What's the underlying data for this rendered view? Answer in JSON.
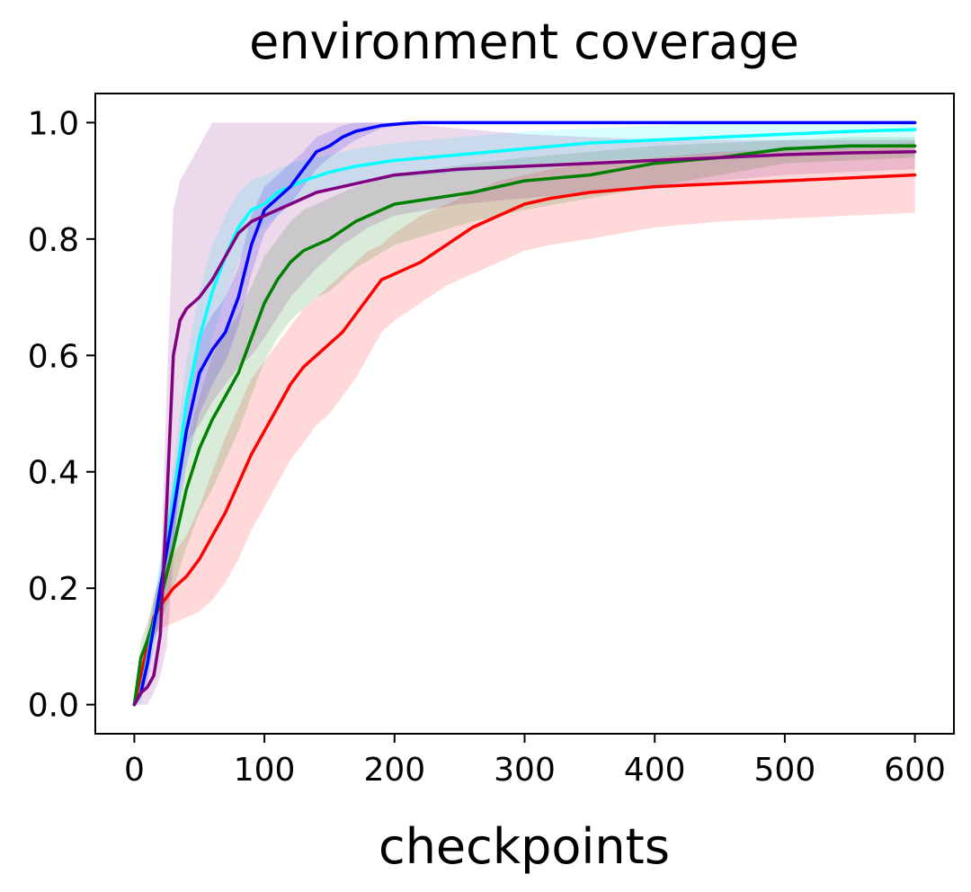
{
  "chart_data": {
    "type": "line",
    "title": "environment coverage",
    "xlabel": "checkpoints",
    "ylabel": "",
    "xlim": [
      -30,
      630
    ],
    "ylim": [
      -0.05,
      1.05
    ],
    "xticks": [
      0,
      100,
      200,
      300,
      400,
      500,
      600
    ],
    "yticks": [
      0.0,
      0.2,
      0.4,
      0.6,
      0.8,
      1.0
    ],
    "xtick_labels": [
      "0",
      "100",
      "200",
      "300",
      "400",
      "500",
      "600"
    ],
    "ytick_labels": [
      "0.0",
      "0.2",
      "0.4",
      "0.6",
      "0.8",
      "1.0"
    ],
    "grid": false,
    "series": [
      {
        "color": "#ff0000",
        "x": [
          0,
          5,
          10,
          15,
          20,
          30,
          40,
          50,
          60,
          70,
          80,
          90,
          100,
          110,
          120,
          130,
          140,
          150,
          160,
          170,
          180,
          190,
          200,
          220,
          240,
          260,
          280,
          300,
          320,
          350,
          400,
          450,
          500,
          550,
          600
        ],
        "y": [
          0.0,
          0.05,
          0.1,
          0.15,
          0.17,
          0.2,
          0.22,
          0.25,
          0.29,
          0.33,
          0.38,
          0.43,
          0.47,
          0.51,
          0.55,
          0.58,
          0.6,
          0.62,
          0.64,
          0.67,
          0.7,
          0.73,
          0.74,
          0.76,
          0.79,
          0.82,
          0.84,
          0.86,
          0.87,
          0.88,
          0.89,
          0.895,
          0.9,
          0.905,
          0.91
        ],
        "band_lower": [
          0.0,
          0.03,
          0.07,
          0.12,
          0.13,
          0.14,
          0.15,
          0.16,
          0.18,
          0.21,
          0.25,
          0.3,
          0.34,
          0.38,
          0.42,
          0.45,
          0.48,
          0.5,
          0.53,
          0.56,
          0.6,
          0.64,
          0.66,
          0.69,
          0.72,
          0.74,
          0.76,
          0.78,
          0.79,
          0.8,
          0.82,
          0.83,
          0.835,
          0.84,
          0.845
        ],
        "band_upper": [
          0.0,
          0.07,
          0.13,
          0.19,
          0.22,
          0.26,
          0.29,
          0.34,
          0.4,
          0.46,
          0.51,
          0.56,
          0.59,
          0.62,
          0.65,
          0.68,
          0.7,
          0.72,
          0.74,
          0.76,
          0.78,
          0.79,
          0.81,
          0.84,
          0.86,
          0.88,
          0.9,
          0.91,
          0.92,
          0.93,
          0.94,
          0.95,
          0.955,
          0.96,
          0.965
        ]
      },
      {
        "color": "#008000",
        "x": [
          0,
          5,
          10,
          20,
          30,
          40,
          50,
          60,
          70,
          80,
          90,
          100,
          110,
          120,
          130,
          140,
          150,
          170,
          200,
          230,
          260,
          300,
          350,
          400,
          450,
          500,
          550,
          600
        ],
        "y": [
          0.0,
          0.08,
          0.11,
          0.18,
          0.27,
          0.37,
          0.44,
          0.49,
          0.53,
          0.57,
          0.63,
          0.69,
          0.73,
          0.76,
          0.78,
          0.79,
          0.8,
          0.83,
          0.86,
          0.87,
          0.88,
          0.9,
          0.91,
          0.93,
          0.94,
          0.955,
          0.96,
          0.96
        ],
        "band_lower": [
          0.0,
          0.05,
          0.08,
          0.14,
          0.2,
          0.27,
          0.33,
          0.37,
          0.42,
          0.47,
          0.53,
          0.59,
          0.63,
          0.66,
          0.68,
          0.7,
          0.71,
          0.75,
          0.79,
          0.81,
          0.83,
          0.85,
          0.87,
          0.89,
          0.91,
          0.93,
          0.935,
          0.94
        ],
        "band_upper": [
          0.0,
          0.11,
          0.14,
          0.22,
          0.33,
          0.45,
          0.53,
          0.6,
          0.64,
          0.67,
          0.72,
          0.77,
          0.8,
          0.83,
          0.85,
          0.86,
          0.87,
          0.89,
          0.91,
          0.92,
          0.93,
          0.94,
          0.95,
          0.96,
          0.965,
          0.97,
          0.975,
          0.975
        ]
      },
      {
        "color": "#00ffff",
        "x": [
          0,
          5,
          10,
          20,
          30,
          40,
          50,
          60,
          70,
          80,
          90,
          100,
          110,
          120,
          130,
          150,
          170,
          200,
          250,
          300,
          350,
          400,
          450,
          500,
          550,
          600
        ],
        "y": [
          0.0,
          0.02,
          0.08,
          0.2,
          0.35,
          0.52,
          0.63,
          0.71,
          0.77,
          0.82,
          0.85,
          0.86,
          0.88,
          0.89,
          0.9,
          0.915,
          0.925,
          0.935,
          0.945,
          0.955,
          0.965,
          0.97,
          0.975,
          0.98,
          0.985,
          0.988
        ],
        "band_lower": [
          0.0,
          0.0,
          0.05,
          0.15,
          0.29,
          0.45,
          0.55,
          0.63,
          0.7,
          0.76,
          0.8,
          0.82,
          0.84,
          0.86,
          0.87,
          0.885,
          0.895,
          0.905,
          0.915,
          0.925,
          0.935,
          0.94,
          0.945,
          0.95,
          0.955,
          0.96
        ],
        "band_upper": [
          0.0,
          0.04,
          0.11,
          0.25,
          0.41,
          0.59,
          0.71,
          0.79,
          0.84,
          0.88,
          0.9,
          0.91,
          0.92,
          0.93,
          0.935,
          0.945,
          0.955,
          0.965,
          0.975,
          0.985,
          0.99,
          0.995,
          0.998,
          1.0,
          1.0,
          1.0
        ]
      },
      {
        "color": "#0000ff",
        "x": [
          0,
          5,
          10,
          20,
          30,
          40,
          50,
          60,
          70,
          80,
          90,
          100,
          110,
          120,
          130,
          140,
          150,
          160,
          170,
          180,
          190,
          200,
          210,
          220,
          230,
          250,
          300,
          400,
          500,
          600
        ],
        "y": [
          0.0,
          0.02,
          0.07,
          0.2,
          0.33,
          0.47,
          0.57,
          0.61,
          0.64,
          0.7,
          0.79,
          0.85,
          0.87,
          0.89,
          0.92,
          0.95,
          0.96,
          0.975,
          0.985,
          0.99,
          0.995,
          0.997,
          0.999,
          1.0,
          1.0,
          1.0,
          1.0,
          1.0,
          1.0,
          1.0
        ],
        "band_lower": [
          0.0,
          0.01,
          0.04,
          0.16,
          0.28,
          0.41,
          0.5,
          0.55,
          0.59,
          0.65,
          0.74,
          0.81,
          0.84,
          0.86,
          0.89,
          0.92,
          0.94,
          0.955,
          0.97,
          0.98,
          0.99,
          0.994,
          0.997,
          0.999,
          1.0,
          1.0,
          1.0,
          1.0,
          1.0,
          1.0
        ],
        "band_upper": [
          0.0,
          0.03,
          0.1,
          0.24,
          0.38,
          0.53,
          0.63,
          0.67,
          0.7,
          0.75,
          0.84,
          0.89,
          0.91,
          0.93,
          0.95,
          0.975,
          0.985,
          0.995,
          1.0,
          1.0,
          1.0,
          1.0,
          1.0,
          1.0,
          1.0,
          1.0,
          1.0,
          1.0,
          1.0,
          1.0
        ]
      },
      {
        "color": "#800080",
        "x": [
          0,
          5,
          10,
          15,
          20,
          25,
          30,
          35,
          40,
          50,
          60,
          70,
          80,
          90,
          100,
          120,
          140,
          160,
          180,
          200,
          250,
          300,
          350,
          400,
          450,
          500,
          550,
          600
        ],
        "y": [
          0.0,
          0.02,
          0.03,
          0.05,
          0.12,
          0.35,
          0.6,
          0.66,
          0.68,
          0.7,
          0.73,
          0.77,
          0.81,
          0.83,
          0.84,
          0.86,
          0.88,
          0.89,
          0.9,
          0.91,
          0.92,
          0.925,
          0.93,
          0.935,
          0.94,
          0.945,
          0.948,
          0.95
        ],
        "band_lower": [
          0.0,
          0.0,
          0.0,
          0.02,
          0.05,
          0.1,
          0.25,
          0.4,
          0.45,
          0.48,
          0.52,
          0.55,
          0.58,
          0.6,
          0.63,
          0.7,
          0.75,
          0.79,
          0.82,
          0.84,
          0.86,
          0.87,
          0.88,
          0.89,
          0.9,
          0.91,
          0.915,
          0.92
        ],
        "band_upper": [
          0.0,
          0.04,
          0.07,
          0.1,
          0.2,
          0.55,
          0.85,
          0.9,
          0.92,
          0.96,
          1.0,
          1.0,
          1.0,
          1.0,
          1.0,
          1.0,
          1.0,
          1.0,
          1.0,
          1.0,
          0.99,
          0.98,
          0.975,
          0.97,
          0.97,
          0.97,
          0.97,
          0.97
        ]
      }
    ]
  }
}
